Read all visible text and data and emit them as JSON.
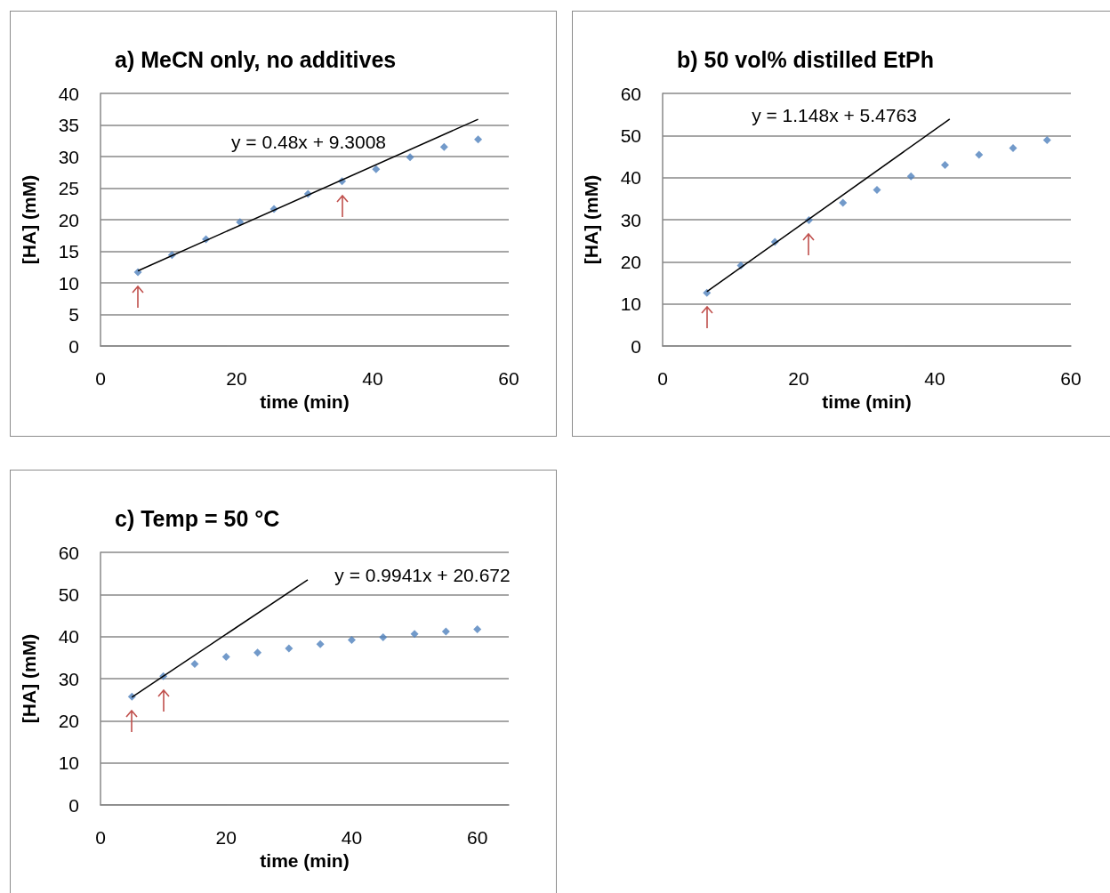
{
  "chart_data": [
    {
      "type": "scatter",
      "title": "a) MeCN only, no additives",
      "xlabel": "time (min)",
      "ylabel": "[HA] (mM)",
      "xlim": [
        0,
        60
      ],
      "xticks": [
        0,
        20,
        40,
        60
      ],
      "ylim": [
        0,
        40
      ],
      "yticks": [
        0,
        5,
        10,
        15,
        20,
        25,
        30,
        35,
        40
      ],
      "grid": "y",
      "marker": "diamond",
      "series": [
        {
          "color": "#4f81bd",
          "x": [
            5.5,
            10.5,
            15.5,
            20.5,
            25.5,
            30.5,
            35.5,
            40.5,
            45.5,
            50.5,
            55.5
          ],
          "values": [
            11.7,
            14.4,
            16.9,
            19.6,
            21.7,
            24.1,
            26.1,
            28.0,
            29.9,
            31.5,
            32.7
          ]
        },
        {
          "type": "line",
          "color": "#000000",
          "marker": "none",
          "x": [
            5.5,
            55.5
          ],
          "values": [
            11.9,
            35.9
          ]
        }
      ],
      "annotations": [
        "y = 0.48x + 9.3008"
      ]
    },
    {
      "type": "scatter",
      "title": "b) 50 vol% distilled EtPh",
      "xlabel": "time (min)",
      "ylabel": "[HA] (mM)",
      "xlim": [
        0,
        60
      ],
      "xticks": [
        0,
        20,
        40,
        60
      ],
      "ylim": [
        0,
        60
      ],
      "yticks": [
        0,
        10,
        20,
        30,
        40,
        50,
        60
      ],
      "grid": "y",
      "marker": "diamond",
      "series": [
        {
          "color": "#4f81bd",
          "x": [
            6.5,
            11.5,
            16.5,
            21.5,
            26.5,
            31.5,
            36.5,
            41.5,
            46.5,
            51.5,
            56.5
          ],
          "values": [
            12.6,
            19.1,
            24.7,
            29.9,
            34.0,
            37.1,
            40.3,
            43.0,
            45.4,
            47.0,
            48.9
          ]
        },
        {
          "type": "line",
          "color": "#000000",
          "marker": "none",
          "x": [
            6.5,
            42.2
          ],
          "values": [
            12.9,
            53.9
          ]
        }
      ],
      "annotations": [
        "y = 1.148x + 5.4763"
      ]
    },
    {
      "type": "scatter",
      "title": "c) Temp = 50 °C",
      "xlabel": "time (min)",
      "ylabel": "[HA] (mM)",
      "xlim": [
        0,
        65
      ],
      "xticks": [
        0,
        20,
        40,
        60
      ],
      "ylim": [
        0,
        60
      ],
      "yticks": [
        0,
        10,
        20,
        30,
        40,
        50,
        60
      ],
      "grid": "y",
      "marker": "diamond",
      "series": [
        {
          "color": "#4f81bd",
          "x": [
            5,
            10,
            15,
            20,
            25,
            30,
            35,
            40,
            45,
            50,
            55,
            60
          ],
          "values": [
            25.7,
            30.6,
            33.5,
            35.2,
            36.2,
            37.2,
            38.2,
            39.2,
            39.8,
            40.6,
            41.2,
            41.7
          ]
        },
        {
          "type": "line",
          "color": "#000000",
          "marker": "none",
          "x": [
            5,
            33
          ],
          "values": [
            25.6,
            53.5
          ]
        }
      ],
      "annotations": [
        "y = 0.9941x + 20.672"
      ]
    }
  ]
}
